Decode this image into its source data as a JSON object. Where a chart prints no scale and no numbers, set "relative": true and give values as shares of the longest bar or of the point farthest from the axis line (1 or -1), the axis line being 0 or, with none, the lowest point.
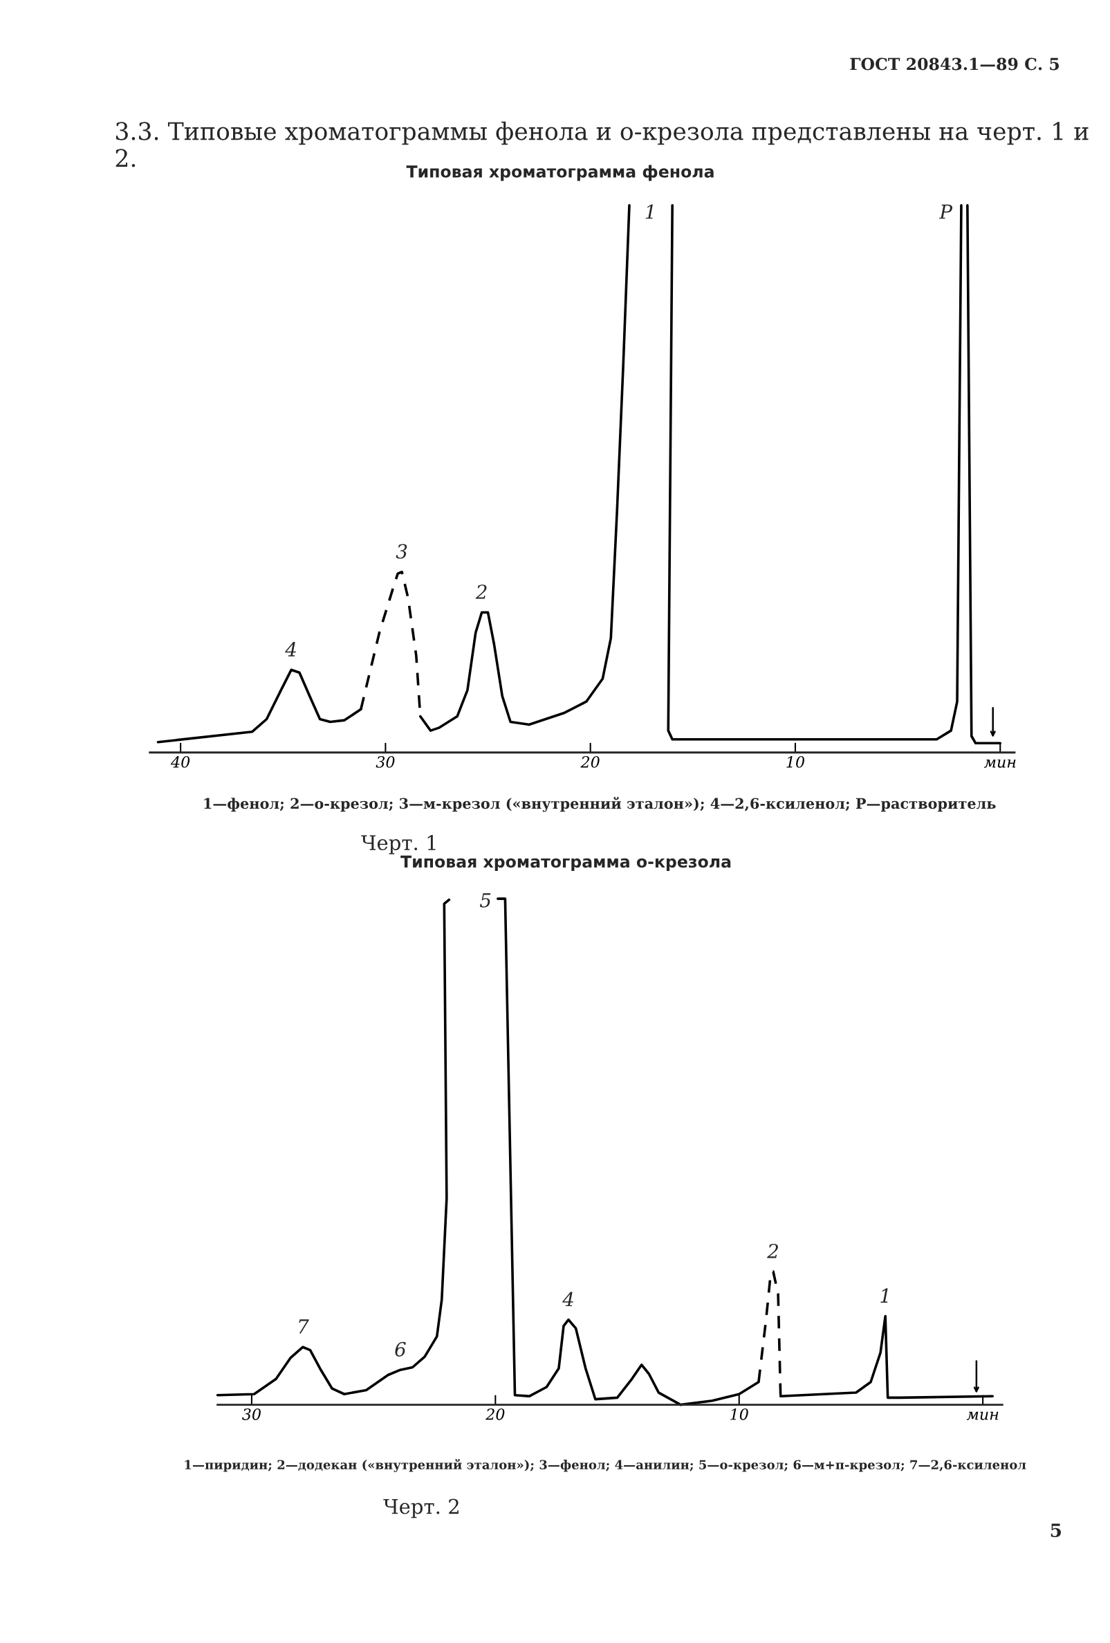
{
  "chart_data": [
    {
      "type": "line",
      "title": "Типовая хроматограмма фенола",
      "relative": true,
      "xlim": [
        41.5,
        -0.7
      ],
      "xticks": [
        40,
        30,
        20,
        10,
        {
          "value": 0,
          "label": "мин"
        }
      ],
      "series": [
        {
          "color": "#000000",
          "line_style": "solid",
          "x": [
            41.1,
            36.5,
            35.8,
            35.1,
            34.6,
            34.2,
            33.7,
            33.2,
            32.7,
            32.0,
            31.2,
            30.0,
            28.3,
            27.8,
            27.4,
            26.5,
            26.0,
            25.6,
            25.3,
            25.0,
            24.7,
            24.3,
            23.9,
            23.0,
            21.3,
            20.2,
            19.4,
            19.0,
            18.7,
            18.4,
            18.1,
            17.0,
            16.0,
            16.2,
            16.0,
            14.0,
            3.1,
            2.4,
            2.1,
            1.9,
            1.75,
            1.6,
            1.4,
            1.2,
            0.0
          ],
          "values": [
            0.019,
            0.038,
            0.061,
            0.114,
            0.151,
            0.146,
            0.103,
            0.061,
            0.056,
            0.059,
            0.079,
            null,
            0.066,
            0.04,
            0.045,
            0.066,
            0.114,
            0.219,
            0.256,
            0.256,
            0.198,
            0.103,
            0.056,
            0.051,
            0.072,
            0.093,
            0.135,
            0.209,
            0.441,
            0.705,
            1.0,
            null,
            1.0,
            0.04,
            0.024,
            0.024,
            0.024,
            0.04,
            0.093,
            1.0,
            null,
            1.0,
            0.03,
            0.017,
            0.017
          ]
        },
        {
          "color": "#000000",
          "line_style": "dashed",
          "x": [
            31.2,
            30.3,
            29.6,
            29.4,
            29.2,
            28.9,
            28.5,
            28.3
          ],
          "values": [
            0.079,
            0.219,
            0.304,
            0.327,
            0.33,
            0.283,
            0.177,
            0.066
          ]
        }
      ],
      "annotations": [
        "ГОСТ 20843.1—89 С. 5",
        "3.3. Типовые хроматограммы фенола и о-крезола представлены на черт. 1 и 2.",
        "1—фенол; 2—о-крезол; 3—м-крезол («внутренний эталон»); 4—2,6-ксиленол; Р—растворитель",
        "Черт. 1",
        {
          "text": "1",
          "x": 18.1,
          "y": 1.0
        },
        {
          "text": "Р",
          "x": 1.9,
          "y": 1.0
        },
        {
          "text": "3",
          "x": 29.2,
          "y": 0.33
        },
        {
          "text": "2",
          "x": 25.3,
          "y": 0.256
        },
        {
          "text": "4",
          "x": 34.6,
          "y": 0.151
        }
      ]
    },
    {
      "type": "line",
      "title": "Типовая хроматограмма о-крезола",
      "relative": true,
      "xlim": [
        31.4,
        -0.8
      ],
      "xticks": [
        30,
        20,
        10,
        {
          "value": 0,
          "label": "мин"
        }
      ],
      "series": [
        {
          "color": "#000000",
          "line_style": "solid",
          "x": [
            31.4,
            29.9,
            29.0,
            28.4,
            27.9,
            27.6,
            27.2,
            26.7,
            26.2,
            25.3,
            24.4,
            23.9,
            23.4,
            22.9,
            22.4,
            22.2,
            22.0,
            22.1,
            21.9,
            20.8,
            19.9,
            19.6,
            19.2,
            18.6,
            17.9,
            17.4,
            17.2,
            17.0,
            16.7,
            16.3,
            15.9,
            15.0,
            14.4,
            14.0,
            13.7,
            13.3,
            12.4,
            11.1,
            10.0,
            9.2,
            8.7,
            8.3,
            5.2,
            4.6,
            4.2,
            4.0,
            3.9,
            3.4,
            -0.4
          ],
          "values": [
            0.019,
            0.021,
            0.051,
            0.093,
            0.114,
            0.108,
            0.072,
            0.032,
            0.021,
            0.029,
            0.059,
            0.069,
            0.074,
            0.095,
            0.135,
            0.208,
            0.408,
            0.99,
            0.998,
            null,
            1.0,
            1.0,
            0.019,
            0.017,
            0.035,
            0.072,
            0.156,
            0.168,
            0.151,
            0.072,
            0.011,
            0.014,
            0.051,
            0.079,
            0.061,
            0.024,
            0.0,
            0.008,
            0.021,
            0.045,
            null,
            0.017,
            0.024,
            0.045,
            0.103,
            0.175,
            0.014,
            0.014,
            0.017
          ]
        },
        {
          "color": "#000000",
          "line_style": "dashed",
          "x": [
            9.2,
            8.9,
            8.7,
            8.6,
            8.4,
            8.3
          ],
          "values": [
            0.045,
            0.166,
            0.261,
            0.263,
            0.219,
            0.019
          ]
        }
      ],
      "annotations": [
        "1—пиридин; 2—додекан («внутренний эталон»); 3—фенол; 4—анилин; 5—о-крезол; 6—м+п-крезол; 7—2,6-ксиленол",
        "Черт. 2",
        "5",
        {
          "text": "5",
          "x": 21.9,
          "y": 0.998
        },
        {
          "text": "7",
          "x": 27.9,
          "y": 0.114
        },
        {
          "text": "6",
          "x": 23.9,
          "y": 0.069
        },
        {
          "text": "4",
          "x": 17.0,
          "y": 0.168
        },
        {
          "text": "2",
          "x": 8.6,
          "y": 0.263
        },
        {
          "text": "1",
          "x": 4.0,
          "y": 0.175
        }
      ]
    }
  ]
}
